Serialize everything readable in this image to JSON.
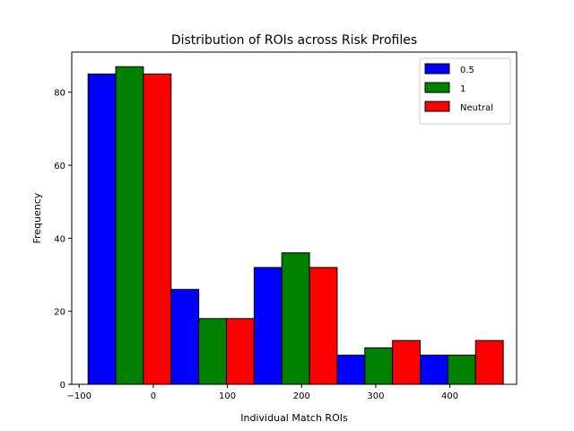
{
  "chart_data": {
    "type": "bar",
    "title": "Distribution of ROIs across Risk Profiles",
    "xlabel": "Individual Match ROIs",
    "ylabel": "Frequency",
    "xlim": [
      -110,
      490
    ],
    "ylim": [
      0,
      91
    ],
    "xticks": [
      -100,
      0,
      100,
      200,
      300,
      400
    ],
    "yticks": [
      0,
      20,
      40,
      60,
      80
    ],
    "legend_position": "top-right",
    "groups": [
      {
        "start": -88,
        "end": 24
      },
      {
        "start": 24,
        "end": 136
      },
      {
        "start": 136,
        "end": 248
      },
      {
        "start": 248,
        "end": 360
      },
      {
        "start": 360,
        "end": 472
      }
    ],
    "series": [
      {
        "name": "0.5",
        "color": "#0000ff",
        "values": [
          85,
          26,
          32,
          8,
          8
        ]
      },
      {
        "name": "1",
        "color": "#008000",
        "values": [
          87,
          18,
          36,
          10,
          8
        ]
      },
      {
        "name": "Neutral",
        "color": "#ff0000",
        "values": [
          85,
          18,
          32,
          12,
          12
        ]
      }
    ]
  }
}
